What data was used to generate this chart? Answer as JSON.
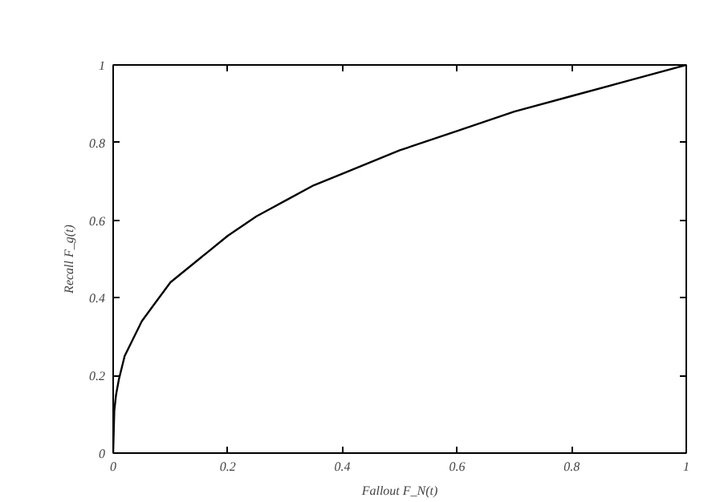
{
  "chart_data": {
    "type": "line",
    "xlabel": "Fallout F_N(t)",
    "ylabel": "Recall F_g(t)",
    "x": [
      0,
      0.002,
      0.005,
      0.01,
      0.02,
      0.03,
      0.05,
      0.07,
      0.1,
      0.15,
      0.2,
      0.25,
      0.3,
      0.35,
      0.4,
      0.5,
      0.6,
      0.7,
      0.8,
      0.9,
      1
    ],
    "series": [
      {
        "color": "#000000",
        "values": [
          0,
          0.11,
          0.15,
          0.19,
          0.25,
          0.28,
          0.34,
          0.38,
          0.44,
          0.5,
          0.56,
          0.61,
          0.65,
          0.69,
          0.72,
          0.78,
          0.83,
          0.88,
          0.92,
          0.96,
          1
        ]
      }
    ],
    "xlim": [
      0,
      1
    ],
    "ylim": [
      0,
      1
    ],
    "xticks": [
      0,
      0.2,
      0.4,
      0.6,
      0.8,
      1
    ],
    "yticks": [
      0,
      0.2,
      0.4,
      0.6,
      0.8,
      1
    ],
    "grid": false,
    "marker": "none",
    "line_style": "solid"
  }
}
